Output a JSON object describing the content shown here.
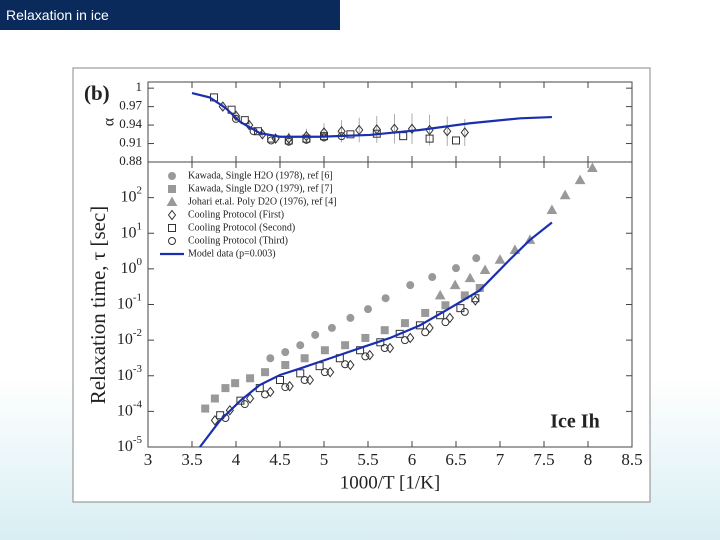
{
  "slide": {
    "title": "Relaxation in ice"
  },
  "chart_data": [
    {
      "type": "scatter",
      "annotation": "(b)",
      "ylabel": "α",
      "xlim": [
        3,
        8.5
      ],
      "xticks": [
        3,
        3.5,
        4,
        4.5,
        5,
        5.5,
        6,
        6.5,
        7,
        7.5,
        8,
        8.5
      ],
      "xtick_labels": false,
      "ylim": [
        0.88,
        1.01
      ],
      "yticks": [
        0.88,
        0.91,
        0.94,
        0.97,
        1
      ],
      "series": [
        {
          "marker": "diamond",
          "filled": false,
          "color": "#333333",
          "x": [
            3.85,
            4.0,
            4.15,
            4.3,
            4.45,
            4.6,
            4.8,
            5.0,
            5.2,
            5.4,
            5.6,
            5.8,
            6.0,
            6.2,
            6.4,
            6.6
          ],
          "values": [
            0.97,
            0.955,
            0.94,
            0.925,
            0.918,
            0.918,
            0.922,
            0.928,
            0.93,
            0.932,
            0.933,
            0.934,
            0.934,
            0.932,
            0.93,
            0.928
          ],
          "errors": [
            0.005,
            0.006,
            0.007,
            0.008,
            0.008,
            0.01,
            0.012,
            0.015,
            0.018,
            0.02,
            0.022,
            0.024,
            0.025,
            0.025,
            0.024,
            0.022
          ]
        },
        {
          "marker": "square",
          "filled": false,
          "color": "#333333",
          "x": [
            3.75,
            3.95,
            4.1,
            4.25,
            4.4,
            4.6,
            4.8,
            5.0,
            5.3,
            5.6,
            5.9,
            6.2,
            6.5
          ],
          "values": [
            0.985,
            0.965,
            0.948,
            0.93,
            0.918,
            0.915,
            0.918,
            0.922,
            0.925,
            0.926,
            0.922,
            0.918,
            0.915
          ]
        },
        {
          "marker": "circle",
          "filled": false,
          "color": "#333333",
          "x": [
            4.0,
            4.2,
            4.4,
            4.6,
            4.8,
            5.0,
            5.2
          ],
          "values": [
            0.95,
            0.93,
            0.915,
            0.913,
            0.916,
            0.92,
            0.922
          ]
        },
        {
          "line": true,
          "color": "#1a2fb0",
          "x": [
            3.5,
            3.7,
            3.88,
            4.05,
            4.27,
            4.5,
            4.95,
            5.52,
            6.09,
            6.66,
            7.23,
            7.59
          ],
          "values": [
            0.992,
            0.985,
            0.968,
            0.945,
            0.927,
            0.921,
            0.921,
            0.924,
            0.932,
            0.943,
            0.951,
            0.953
          ]
        }
      ]
    },
    {
      "type": "scatter",
      "annotation": "Ice Ih",
      "xlabel": "1000/T [1/K]",
      "ylabel": "Relaxation time, τ [sec]",
      "log_y": true,
      "legend": "upper left",
      "xlim": [
        3,
        8.5
      ],
      "xticks": [
        3,
        3.5,
        4,
        4.5,
        5,
        5.5,
        6,
        6.5,
        7,
        7.5,
        8,
        8.5
      ],
      "xtick_labels": true,
      "ylim": [
        1e-05,
        1000
      ],
      "yticks": [
        {
          "value": 1e-05,
          "label": "10",
          "sup": "-5"
        },
        {
          "value": 0.0001,
          "label": "10",
          "sup": "-4"
        },
        {
          "value": 0.001,
          "label": "10",
          "sup": "-3"
        },
        {
          "value": 0.01,
          "label": "10",
          "sup": "-2"
        },
        {
          "value": 0.1,
          "label": "10",
          "sup": "-1"
        },
        {
          "value": 1,
          "label": "10",
          "sup": "0"
        },
        {
          "value": 10,
          "label": "10",
          "sup": "1"
        },
        {
          "value": 100,
          "label": "10",
          "sup": "2"
        }
      ],
      "series": [
        {
          "name": "Kawada, Single H2O (1978), ref [6]",
          "marker": "circle",
          "filled": true,
          "color": "#999999",
          "x": [
            4.39,
            4.56,
            4.73,
            4.9,
            5.09,
            5.3,
            5.5,
            5.7,
            5.98,
            6.23,
            6.5,
            6.73
          ],
          "values": [
            0.0031,
            0.0046,
            0.0072,
            0.014,
            0.022,
            0.042,
            0.074,
            0.15,
            0.35,
            0.59,
            1.05,
            2.0
          ]
        },
        {
          "name": "Kawada, Single D2O (1979), ref [7]",
          "marker": "square",
          "filled": true,
          "color": "#999999",
          "x": [
            3.65,
            3.76,
            3.88,
            3.99,
            4.16,
            4.33,
            4.56,
            4.78,
            5.01,
            5.24,
            5.47,
            5.69,
            5.92,
            6.15,
            6.38,
            6.6,
            6.77
          ],
          "values": [
            0.00012,
            0.00023,
            0.00045,
            0.00062,
            0.00085,
            0.00126,
            0.002,
            0.0031,
            0.0052,
            0.0072,
            0.0115,
            0.019,
            0.03,
            0.058,
            0.095,
            0.18,
            0.29
          ]
        },
        {
          "name": "Johari et.al. Poly D2O (1976), ref [4]",
          "marker": "triangle",
          "filled": true,
          "color": "#999999",
          "x": [
            6.32,
            6.49,
            6.66,
            6.83,
            7.0,
            7.17,
            7.34,
            7.59,
            7.74,
            7.91,
            8.05
          ],
          "values": [
            0.18,
            0.35,
            0.55,
            0.93,
            1.8,
            3.4,
            6.5,
            45,
            117,
            310,
            680
          ]
        },
        {
          "name": "Cooling Protocol (First)",
          "marker": "diamond",
          "filled": false,
          "color": "#333333",
          "x": [
            3.76,
            3.93,
            4.16,
            4.39,
            4.61,
            4.84,
            5.07,
            5.3,
            5.52,
            5.75,
            5.98,
            6.2,
            6.43,
            6.72
          ],
          "values": [
            5.6e-05,
            0.000107,
            0.00023,
            0.00035,
            0.00051,
            0.00076,
            0.00126,
            0.002,
            0.0038,
            0.006,
            0.0115,
            0.022,
            0.042,
            0.13
          ]
        },
        {
          "name": "Cooling Protocol (Second)",
          "marker": "square",
          "filled": false,
          "color": "#333333",
          "x": [
            3.82,
            4.05,
            4.27,
            4.5,
            4.73,
            4.95,
            5.18,
            5.41,
            5.64,
            5.86,
            6.09,
            6.32,
            6.55,
            6.72
          ],
          "values": [
            7.8e-05,
            0.0002,
            0.00045,
            0.00076,
            0.00117,
            0.00186,
            0.0031,
            0.0052,
            0.0087,
            0.015,
            0.026,
            0.05,
            0.079,
            0.15
          ]
        },
        {
          "name": "Cooling Protocol (Third)",
          "marker": "circle",
          "filled": false,
          "color": "#333333",
          "x": [
            3.88,
            4.1,
            4.33,
            4.56,
            4.78,
            5.01,
            5.24,
            5.47,
            5.69,
            5.92,
            6.15,
            6.38,
            6.6
          ],
          "values": [
            6.5e-05,
            0.00016,
            0.0003,
            0.00048,
            0.00076,
            0.00126,
            0.0021,
            0.0035,
            0.006,
            0.01,
            0.0166,
            0.032,
            0.062
          ]
        },
        {
          "name": "Model data (p=0.003)",
          "line": true,
          "color": "#1a2fb0",
          "x": [
            3.59,
            3.82,
            4.05,
            4.27,
            4.5,
            4.73,
            5.07,
            5.41,
            5.75,
            6.09,
            6.43,
            6.77,
            7.11,
            7.34,
            7.59
          ],
          "values": [
            1e-05,
            5.6e-05,
            0.0002,
            0.00055,
            0.00105,
            0.0016,
            0.0031,
            0.006,
            0.0115,
            0.026,
            0.079,
            0.25,
            1.8,
            6.5,
            20
          ]
        }
      ]
    }
  ]
}
